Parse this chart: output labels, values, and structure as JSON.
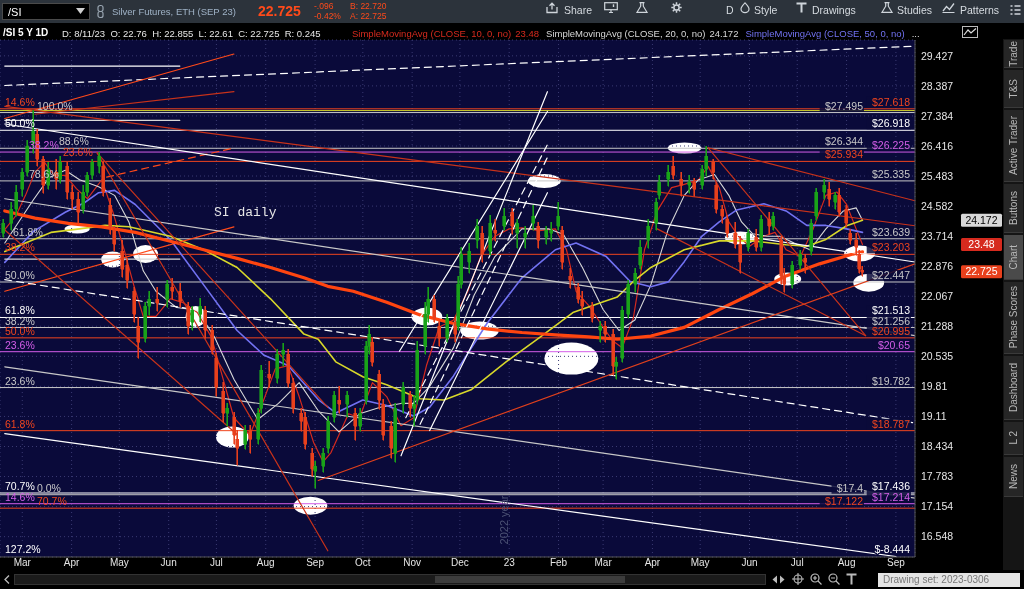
{
  "chart_data": {
    "type": "candlestick",
    "title": "/SI 5 Y 1D",
    "subtitle": "D: 8/11/23  O: 22.76  H: 22.855  L: 22.61  C: 22.725  R: 0.245",
    "x": [
      "2022-02-17",
      "2022-02-22",
      "2022-02-25",
      "2022-03-01",
      "2022-03-04",
      "2022-03-08",
      "2022-03-10",
      "2022-03-14",
      "2022-03-17",
      "2022-03-22",
      "2022-03-25",
      "2022-03-29",
      "2022-04-01",
      "2022-04-05",
      "2022-04-08",
      "2022-04-11",
      "2022-04-14",
      "2022-04-18",
      "2022-04-21",
      "2022-04-25",
      "2022-04-28",
      "2022-05-03",
      "2022-05-06",
      "2022-05-10",
      "2022-05-13",
      "2022-05-17",
      "2022-05-20",
      "2022-05-25",
      "2022-05-31",
      "2022-06-03",
      "2022-06-08",
      "2022-06-13",
      "2022-06-16",
      "2022-06-21",
      "2022-06-24",
      "2022-06-28",
      "2022-07-01",
      "2022-07-05",
      "2022-07-08",
      "2022-07-12",
      "2022-07-14",
      "2022-07-19",
      "2022-07-22",
      "2022-07-27",
      "2022-07-29",
      "2022-08-03",
      "2022-08-08",
      "2022-08-12",
      "2022-08-15",
      "2022-08-18",
      "2022-08-23",
      "2022-08-26",
      "2022-08-30",
      "2022-09-01",
      "2022-09-06",
      "2022-09-09",
      "2022-09-13",
      "2022-09-16",
      "2022-09-21",
      "2022-09-26",
      "2022-09-29",
      "2022-10-03",
      "2022-10-05",
      "2022-10-07",
      "2022-10-11",
      "2022-10-14",
      "2022-10-19",
      "2022-10-21",
      "2022-10-26",
      "2022-10-31",
      "2022-11-02",
      "2022-11-04",
      "2022-11-09",
      "2022-11-11",
      "2022-11-15",
      "2022-11-18",
      "2022-11-23",
      "2022-11-28",
      "2022-11-30",
      "2022-12-02",
      "2022-12-07",
      "2022-12-12",
      "2022-12-15",
      "2022-12-20",
      "2022-12-23",
      "2022-12-29",
      "2023-01-03",
      "2023-01-06",
      "2023-01-11",
      "2023-01-16",
      "2023-01-19",
      "2023-01-24",
      "2023-01-27",
      "2023-02-01",
      "2023-02-03",
      "2023-02-08",
      "2023-02-13",
      "2023-02-16",
      "2023-02-22",
      "2023-02-27",
      "2023-03-02",
      "2023-03-07",
      "2023-03-09",
      "2023-03-13",
      "2023-03-17",
      "2023-03-21",
      "2023-03-24",
      "2023-03-29",
      "2023-04-03",
      "2023-04-05",
      "2023-04-11",
      "2023-04-14",
      "2023-04-19",
      "2023-04-24",
      "2023-04-27",
      "2023-05-02",
      "2023-05-05",
      "2023-05-09",
      "2023-05-11",
      "2023-05-15",
      "2023-05-18",
      "2023-05-23",
      "2023-05-26",
      "2023-05-31",
      "2023-06-05",
      "2023-06-08",
      "2023-06-13",
      "2023-06-16",
      "2023-06-21",
      "2023-06-23",
      "2023-06-28",
      "2023-07-03",
      "2023-07-06",
      "2023-07-10",
      "2023-07-13",
      "2023-07-18",
      "2023-07-21",
      "2023-07-25",
      "2023-07-27",
      "2023-08-01",
      "2023-08-03",
      "2023-08-07",
      "2023-08-09",
      "2023-08-11"
    ],
    "ohlc": [
      [
        23.8,
        24.2,
        23.7,
        24.1
      ],
      [
        24.1,
        24.7,
        23.9,
        24.5
      ],
      [
        24.5,
        25.2,
        24.3,
        25.0
      ],
      [
        25.1,
        25.7,
        24.9,
        25.6
      ],
      [
        25.6,
        26.6,
        25.5,
        26.4
      ],
      [
        26.5,
        27.55,
        26.2,
        26.9
      ],
      [
        26.8,
        26.95,
        25.8,
        26.0
      ],
      [
        26.0,
        26.1,
        25.0,
        25.2
      ],
      [
        25.2,
        25.9,
        25.1,
        25.7
      ],
      [
        25.6,
        26.0,
        25.1,
        25.4
      ],
      [
        25.4,
        26.1,
        25.3,
        25.9
      ],
      [
        25.8,
        25.9,
        24.8,
        25.0
      ],
      [
        25.0,
        25.2,
        24.5,
        24.8
      ],
      [
        24.8,
        25.0,
        24.1,
        24.4
      ],
      [
        24.5,
        25.2,
        24.4,
        25.0
      ],
      [
        25.0,
        25.6,
        24.9,
        25.5
      ],
      [
        25.5,
        26.0,
        25.4,
        25.9
      ],
      [
        25.8,
        26.2,
        25.6,
        26.1
      ],
      [
        25.8,
        25.9,
        24.9,
        25.0
      ],
      [
        24.6,
        24.8,
        23.8,
        24.0
      ],
      [
        23.9,
        24.0,
        23.3,
        23.5
      ],
      [
        23.3,
        23.6,
        22.6,
        22.8
      ],
      [
        22.9,
        23.1,
        22.3,
        22.5
      ],
      [
        22.2,
        22.3,
        21.4,
        21.6
      ],
      [
        21.3,
        21.5,
        20.5,
        20.9
      ],
      [
        21.0,
        21.9,
        20.9,
        21.8
      ],
      [
        21.8,
        22.2,
        21.6,
        22.0
      ],
      [
        22.0,
        22.3,
        21.7,
        21.9
      ],
      [
        22.0,
        22.5,
        21.8,
        22.4
      ],
      [
        22.3,
        22.55,
        22.0,
        22.2
      ],
      [
        22.2,
        22.4,
        21.8,
        21.95
      ],
      [
        21.8,
        21.9,
        21.1,
        21.3
      ],
      [
        21.4,
        21.8,
        21.2,
        21.7
      ],
      [
        21.6,
        22.0,
        21.4,
        21.8
      ],
      [
        21.7,
        21.8,
        21.0,
        21.2
      ],
      [
        21.2,
        21.3,
        20.6,
        20.7
      ],
      [
        20.5,
        20.6,
        19.6,
        19.8
      ],
      [
        19.7,
        19.9,
        19.0,
        19.2
      ],
      [
        19.2,
        19.4,
        18.9,
        19.3
      ],
      [
        19.1,
        19.2,
        18.5,
        18.7
      ],
      [
        18.6,
        18.8,
        18.05,
        18.4
      ],
      [
        18.5,
        18.9,
        18.4,
        18.8
      ],
      [
        18.8,
        18.9,
        18.3,
        18.6
      ],
      [
        18.6,
        19.3,
        18.5,
        19.2
      ],
      [
        19.3,
        20.3,
        19.2,
        20.2
      ],
      [
        20.1,
        20.4,
        19.8,
        20.0
      ],
      [
        20.0,
        20.7,
        19.9,
        20.6
      ],
      [
        20.6,
        20.85,
        20.3,
        20.7
      ],
      [
        20.6,
        20.7,
        19.8,
        19.9
      ],
      [
        19.9,
        20.0,
        19.2,
        19.3
      ],
      [
        19.2,
        19.3,
        18.8,
        19.0
      ],
      [
        19.1,
        19.2,
        18.4,
        18.5
      ],
      [
        18.3,
        18.4,
        17.8,
        17.95
      ],
      [
        17.9,
        18.1,
        17.56,
        18.0
      ],
      [
        18.0,
        18.4,
        17.9,
        18.3
      ],
      [
        18.4,
        19.1,
        18.3,
        19.0
      ],
      [
        19.1,
        19.7,
        19.0,
        19.6
      ],
      [
        19.5,
        19.8,
        19.2,
        19.4
      ],
      [
        19.4,
        19.7,
        19.1,
        19.6
      ],
      [
        19.2,
        19.3,
        18.6,
        18.9
      ],
      [
        18.9,
        19.3,
        18.8,
        19.2
      ],
      [
        19.5,
        20.9,
        19.4,
        20.8
      ],
      [
        20.8,
        21.3,
        20.6,
        21.1
      ],
      [
        20.9,
        21.0,
        20.3,
        20.4
      ],
      [
        20.1,
        20.2,
        19.3,
        19.5
      ],
      [
        19.4,
        19.5,
        18.6,
        18.7
      ],
      [
        18.9,
        19.0,
        18.2,
        18.4
      ],
      [
        18.3,
        19.4,
        18.1,
        19.3
      ],
      [
        19.4,
        19.9,
        19.2,
        19.8
      ],
      [
        19.6,
        19.7,
        19.1,
        19.3
      ],
      [
        19.3,
        19.6,
        18.9,
        19.4
      ],
      [
        19.5,
        20.9,
        19.4,
        20.7
      ],
      [
        20.8,
        21.9,
        20.6,
        21.6
      ],
      [
        21.6,
        22.3,
        21.4,
        22.0
      ],
      [
        22.0,
        22.1,
        21.4,
        21.5
      ],
      [
        21.3,
        21.4,
        20.8,
        21.0
      ],
      [
        21.0,
        21.6,
        20.9,
        21.5
      ],
      [
        21.4,
        21.5,
        20.9,
        21.1
      ],
      [
        21.3,
        22.6,
        21.2,
        22.4
      ],
      [
        22.4,
        23.4,
        22.3,
        23.2
      ],
      [
        23.0,
        23.5,
        22.7,
        23.3
      ],
      [
        23.6,
        24.2,
        23.4,
        24.0
      ],
      [
        23.8,
        24.0,
        23.0,
        23.2
      ],
      [
        23.3,
        24.3,
        23.2,
        24.1
      ],
      [
        23.9,
        24.2,
        23.6,
        23.8
      ],
      [
        24.0,
        24.5,
        23.9,
        24.3
      ],
      [
        24.4,
        24.5,
        23.8,
        24.0
      ],
      [
        23.8,
        24.2,
        23.4,
        24.1
      ],
      [
        23.7,
        24.0,
        23.4,
        23.8
      ],
      [
        24.1,
        24.6,
        23.9,
        24.3
      ],
      [
        24.0,
        24.1,
        23.4,
        23.6
      ],
      [
        23.7,
        24.0,
        23.5,
        23.9
      ],
      [
        23.8,
        24.1,
        23.6,
        23.9
      ],
      [
        24.0,
        24.7,
        23.9,
        24.3
      ],
      [
        23.9,
        24.0,
        22.8,
        23.0
      ],
      [
        22.6,
        22.8,
        22.3,
        22.5
      ],
      [
        22.3,
        22.4,
        21.9,
        22.0
      ],
      [
        22.0,
        22.2,
        21.6,
        21.8
      ],
      [
        21.8,
        21.9,
        21.4,
        21.5
      ],
      [
        21.2,
        21.4,
        20.9,
        21.3
      ],
      [
        21.3,
        21.4,
        20.9,
        21.1
      ],
      [
        21.1,
        21.2,
        20.1,
        20.3
      ],
      [
        20.3,
        20.5,
        20.0,
        20.4
      ],
      [
        20.5,
        21.8,
        20.4,
        21.7
      ],
      [
        21.6,
        22.5,
        21.5,
        22.4
      ],
      [
        22.4,
        22.8,
        22.2,
        22.7
      ],
      [
        22.9,
        23.6,
        22.8,
        23.4
      ],
      [
        23.6,
        24.2,
        23.4,
        24.0
      ],
      [
        24.1,
        24.8,
        23.9,
        24.7
      ],
      [
        24.9,
        25.5,
        24.8,
        25.3
      ],
      [
        25.4,
        25.8,
        25.2,
        25.6
      ],
      [
        25.8,
        26.1,
        25.4,
        25.5
      ],
      [
        25.4,
        25.6,
        24.9,
        25.2
      ],
      [
        25.2,
        25.5,
        25.0,
        25.3
      ],
      [
        25.3,
        25.4,
        24.9,
        25.1
      ],
      [
        25.2,
        25.8,
        25.1,
        25.7
      ],
      [
        25.7,
        26.4,
        25.5,
        26.1
      ],
      [
        25.9,
        26.0,
        25.4,
        25.6
      ],
      [
        25.2,
        25.3,
        24.4,
        24.5
      ],
      [
        24.5,
        24.6,
        24.1,
        24.3
      ],
      [
        24.2,
        24.3,
        23.7,
        23.8
      ],
      [
        23.8,
        24.1,
        23.4,
        23.5
      ],
      [
        23.5,
        23.7,
        22.7,
        23.0
      ],
      [
        23.4,
        23.9,
        23.3,
        23.8
      ],
      [
        23.7,
        23.9,
        23.3,
        23.4
      ],
      [
        23.4,
        24.3,
        23.3,
        24.2
      ],
      [
        24.2,
        24.4,
        23.8,
        24.0
      ],
      [
        24.0,
        24.4,
        23.9,
        24.3
      ],
      [
        23.6,
        23.7,
        22.4,
        22.6
      ],
      [
        22.6,
        22.8,
        22.2,
        22.4
      ],
      [
        22.4,
        23.0,
        22.3,
        22.9
      ],
      [
        22.9,
        23.3,
        22.8,
        23.2
      ],
      [
        23.1,
        23.2,
        22.7,
        23.0
      ],
      [
        23.3,
        24.2,
        23.2,
        24.1
      ],
      [
        24.3,
        25.1,
        24.2,
        25.0
      ],
      [
        25.0,
        25.37,
        24.8,
        25.2
      ],
      [
        25.1,
        25.3,
        24.6,
        24.8
      ],
      [
        24.7,
        25.0,
        24.5,
        24.9
      ],
      [
        24.9,
        25.1,
        24.3,
        24.4
      ],
      [
        24.5,
        24.6,
        24.0,
        24.1
      ],
      [
        23.8,
        23.9,
        23.5,
        23.6
      ],
      [
        23.6,
        23.8,
        23.2,
        23.4
      ],
      [
        23.2,
        23.3,
        22.7,
        22.8
      ],
      [
        22.76,
        22.855,
        22.61,
        22.725
      ]
    ],
    "colors": [
      "#19a319",
      "#19a319",
      "#19a319",
      "#19a319",
      "#19a319",
      "#19a319",
      "#e8401c",
      "#e8401c",
      "#19a319",
      "#e8401c",
      "#19a319",
      "#e8401c",
      "#e8401c",
      "#e8401c",
      "#19a319",
      "#19a319",
      "#19a319",
      "#19a319",
      "#e8401c",
      "#e8401c",
      "#e8401c",
      "#e8401c",
      "#e8401c",
      "#e8401c",
      "#e8401c",
      "#19a319",
      "#19a319",
      "#e8401c",
      "#19a319",
      "#e8401c",
      "#e8401c",
      "#e8401c",
      "#19a319",
      "#19a319",
      "#e8401c",
      "#e8401c",
      "#e8401c",
      "#e8401c",
      "#19a319",
      "#e8401c",
      "#e8401c",
      "#19a319",
      "#e8401c",
      "#19a319",
      "#19a319",
      "#e8401c",
      "#19a319",
      "#19a319",
      "#e8401c",
      "#e8401c",
      "#e8401c",
      "#e8401c",
      "#e8401c",
      "#19a319",
      "#19a319",
      "#19a319",
      "#19a319",
      "#e8401c",
      "#19a319",
      "#e8401c",
      "#19a319",
      "#19a319",
      "#19a319",
      "#e8401c",
      "#e8401c",
      "#e8401c",
      "#e8401c",
      "#19a319",
      "#19a319",
      "#e8401c",
      "#19a319",
      "#19a319",
      "#19a319",
      "#19a319",
      "#e8401c",
      "#e8401c",
      "#19a319",
      "#e8401c",
      "#19a319",
      "#19a319",
      "#19a319",
      "#19a319",
      "#e8401c",
      "#19a319",
      "#e8401c",
      "#19a319",
      "#e8401c",
      "#19a319",
      "#19a319",
      "#19a319",
      "#e8401c",
      "#19a319",
      "#19a319",
      "#19a319",
      "#e8401c",
      "#e8401c",
      "#e8401c",
      "#e8401c",
      "#e8401c",
      "#19a319",
      "#e8401c",
      "#e8401c",
      "#19a319",
      "#19a319",
      "#19a319",
      "#19a319",
      "#19a319",
      "#19a319",
      "#19a319",
      "#19a319",
      "#19a319",
      "#e8401c",
      "#e8401c",
      "#19a319",
      "#e8401c",
      "#19a319",
      "#19a319",
      "#e8401c",
      "#e8401c",
      "#e8401c",
      "#e8401c",
      "#e8401c",
      "#e8401c",
      "#19a319",
      "#e8401c",
      "#19a319",
      "#e8401c",
      "#19a319",
      "#e8401c",
      "#e8401c",
      "#19a319",
      "#19a319",
      "#e8401c",
      "#19a319",
      "#19a319",
      "#19a319",
      "#e8401c",
      "#19a319",
      "#e8401c",
      "#e8401c",
      "#e8401c",
      "#e8401c",
      "#e8401c",
      "#e8401c"
    ],
    "series": [
      {
        "name": "SimpleMovingAvg (CLOSE, 10, 0, no)",
        "type": "line",
        "color": "#d62a1e",
        "x": [
          "2022-02-18",
          "2022-02-25",
          "2022-03-03",
          "2022-03-09",
          "2022-03-15",
          "2022-03-21",
          "2022-03-28",
          "2022-04-04",
          "2022-04-11",
          "2022-04-20",
          "2022-04-27",
          "2022-05-04",
          "2022-05-10",
          "2022-05-16",
          "2022-05-24",
          "2022-06-02",
          "2022-06-10",
          "2022-06-19",
          "2022-06-28",
          "2022-07-04",
          "2022-07-12",
          "2022-07-22",
          "2022-07-29",
          "2022-08-07",
          "2022-08-15",
          "2022-08-22",
          "2022-08-31",
          "2022-09-06",
          "2022-09-11",
          "2022-09-22",
          "2022-09-29",
          "2022-10-07",
          "2022-10-16",
          "2022-10-25",
          "2022-11-02",
          "2022-11-10",
          "2022-11-18",
          "2022-11-27",
          "2022-12-06",
          "2022-12-14",
          "2022-12-23",
          "2023-01-01",
          "2023-01-09",
          "2023-01-20",
          "2023-01-30",
          "2023-02-06",
          "2023-02-12",
          "2023-02-20",
          "2023-03-01",
          "2023-03-07",
          "2023-03-13",
          "2023-03-20",
          "2023-03-27",
          "2023-04-04",
          "2023-04-13",
          "2023-04-21",
          "2023-04-30",
          "2023-05-06",
          "2023-05-13",
          "2023-05-19",
          "2023-05-25",
          "2023-06-01",
          "2023-06-10",
          "2023-06-17",
          "2023-06-24",
          "2023-07-03",
          "2023-07-11",
          "2023-07-19",
          "2023-07-26",
          "2023-08-01",
          "2023-08-07",
          "2023-08-11"
        ],
        "values": [
          23.9,
          24.3,
          24.9,
          25.6,
          25.9,
          25.5,
          25.5,
          25.1,
          24.8,
          25.37,
          24.4,
          23.33,
          22.37,
          21.54,
          21.54,
          22.0,
          21.9,
          21.64,
          21.0,
          20.15,
          19.08,
          18.69,
          19.32,
          20.23,
          20.31,
          19.57,
          18.53,
          18.1,
          18.3,
          19.17,
          19.08,
          19.9,
          19.57,
          18.9,
          19.08,
          20.31,
          21.27,
          21.45,
          22.2,
          23.14,
          23.71,
          23.92,
          23.95,
          23.87,
          23.92,
          23.33,
          22.2,
          21.82,
          21.27,
          20.92,
          20.75,
          21.5,
          23.33,
          24.44,
          25.13,
          25.23,
          25.37,
          25.78,
          25.13,
          24.12,
          23.71,
          23.43,
          23.71,
          23.82,
          23.33,
          23.14,
          23.92,
          24.9,
          25.0,
          24.63,
          23.92,
          23.48
        ]
      },
      {
        "name": "SimpleMovingAvg (CLOSE, 20, 0, no)",
        "type": "line",
        "color": "#d8d8d8",
        "x": [
          "2022-02-18",
          "2022-03-08",
          "2022-03-18",
          "2022-03-28",
          "2022-04-06",
          "2022-04-18",
          "2022-04-28",
          "2022-05-07",
          "2022-05-16",
          "2022-05-24",
          "2022-06-06",
          "2022-06-19",
          "2022-06-30",
          "2022-07-12",
          "2022-07-27",
          "2022-08-09",
          "2022-08-22",
          "2022-09-03",
          "2022-09-16",
          "2022-09-29",
          "2022-10-12",
          "2022-10-25",
          "2022-11-02",
          "2022-11-12",
          "2022-11-27",
          "2022-12-10",
          "2022-12-23",
          "2023-01-09",
          "2023-01-26",
          "2023-02-04",
          "2023-02-16",
          "2023-03-01",
          "2023-03-11",
          "2023-03-21",
          "2023-03-31",
          "2023-04-11",
          "2023-04-21",
          "2023-04-30",
          "2023-05-10",
          "2023-05-19",
          "2023-05-27",
          "2023-06-03",
          "2023-06-12",
          "2023-06-20",
          "2023-06-29",
          "2023-07-09",
          "2023-07-19",
          "2023-07-30",
          "2023-08-07",
          "2023-08-11"
        ],
        "values": [
          23.52,
          24.77,
          25.44,
          25.66,
          25.37,
          25.16,
          24.9,
          24.12,
          22.75,
          22.2,
          21.77,
          21.7,
          21.0,
          19.98,
          19.04,
          19.41,
          19.9,
          19.24,
          18.76,
          19.17,
          19.32,
          19.41,
          19.41,
          19.81,
          20.75,
          22.1,
          23.14,
          23.92,
          23.92,
          23.77,
          22.84,
          21.72,
          21.18,
          21.45,
          22.37,
          23.92,
          24.9,
          25.37,
          25.53,
          24.9,
          24.12,
          23.78,
          23.71,
          23.71,
          23.52,
          23.33,
          23.92,
          24.44,
          24.53,
          24.172
        ]
      },
      {
        "name": "SimpleMovingAvg (CLOSE, 50, 0, no)",
        "type": "line",
        "color": "#7272f2",
        "x": [
          "2022-02-18",
          "2022-03-08",
          "2022-03-28",
          "2022-04-09",
          "2022-04-18",
          "2022-04-28",
          "2022-05-11",
          "2022-06-02",
          "2022-06-23",
          "2022-07-14",
          "2022-07-31",
          "2022-08-15",
          "2022-09-03",
          "2022-09-14",
          "2022-10-01",
          "2022-10-16",
          "2022-11-02",
          "2022-11-12",
          "2022-11-27",
          "2022-12-18",
          "2023-01-09",
          "2023-01-30",
          "2023-02-12",
          "2023-03-03",
          "2023-03-18",
          "2023-03-31",
          "2023-04-11",
          "2023-04-21",
          "2023-05-02",
          "2023-05-13",
          "2023-05-24",
          "2023-06-10",
          "2023-06-24",
          "2023-07-07",
          "2023-07-19",
          "2023-08-01",
          "2023-08-11"
        ],
        "values": [
          22.98,
          23.85,
          24.4,
          24.68,
          24.98,
          25.05,
          24.63,
          23.62,
          22.37,
          21.18,
          20.56,
          20.31,
          19.5,
          19.19,
          19.49,
          19.36,
          19.12,
          19.32,
          20.06,
          21.36,
          22.56,
          23.33,
          23.52,
          23.14,
          22.46,
          22.32,
          22.45,
          23.0,
          23.71,
          24.12,
          24.47,
          24.65,
          24.44,
          24.02,
          24.02,
          23.92,
          23.82
        ]
      },
      {
        "type": "line",
        "color": "#d8d82a",
        "x": [
          "2022-02-18",
          "2022-03-19",
          "2022-04-06",
          "2022-04-22",
          "2022-05-07",
          "2022-06-02",
          "2022-06-23",
          "2022-07-14",
          "2022-08-04",
          "2022-08-25",
          "2022-09-03",
          "2022-09-14",
          "2022-10-01",
          "2022-10-16",
          "2022-11-06",
          "2022-11-21",
          "2022-12-08",
          "2022-12-30",
          "2023-01-20",
          "2023-02-10",
          "2023-03-03",
          "2023-03-10",
          "2023-03-21",
          "2023-03-31",
          "2023-04-21",
          "2023-05-13",
          "2023-06-03",
          "2023-06-24",
          "2023-07-07",
          "2023-07-19",
          "2023-08-01",
          "2023-08-11"
        ],
        "values": [
          23.28,
          23.82,
          23.92,
          24.02,
          23.98,
          23.71,
          23.33,
          22.84,
          22.0,
          21.09,
          20.96,
          20.4,
          20.04,
          19.85,
          19.52,
          19.49,
          19.73,
          20.4,
          21.0,
          21.64,
          21.95,
          22.05,
          22.5,
          22.84,
          23.33,
          23.58,
          23.58,
          23.47,
          23.43,
          23.62,
          24.01,
          24.17
        ]
      },
      {
        "type": "line",
        "color": "#ff4510",
        "x": [
          "2022-02-18",
          "2022-03-09",
          "2022-03-30",
          "2022-04-20",
          "2022-05-11",
          "2022-06-02",
          "2022-06-23",
          "2022-07-14",
          "2022-08-04",
          "2022-08-25",
          "2022-09-09",
          "2022-09-25",
          "2022-10-16",
          "2022-11-06",
          "2022-11-27",
          "2022-12-18",
          "2023-01-09",
          "2023-01-30",
          "2023-02-20",
          "2023-03-10",
          "2023-03-31",
          "2023-04-21",
          "2023-05-13",
          "2023-06-03",
          "2023-06-24",
          "2023-07-15",
          "2023-08-05",
          "2023-08-11"
        ],
        "values": [
          24.44,
          24.23,
          24.08,
          23.98,
          23.82,
          23.57,
          23.33,
          23.09,
          22.84,
          22.56,
          22.33,
          22.2,
          21.91,
          21.58,
          21.36,
          21.22,
          21.13,
          21.07,
          21.02,
          20.96,
          21.04,
          21.26,
          21.72,
          22.14,
          22.61,
          22.94,
          23.21,
          23.27
        ]
      },
      {
        "type": "line",
        "color": "#ffffff",
        "line_style": "dashed",
        "x": [
          "2022-02-18",
          "2023-09-13"
        ],
        "values": [
          28.4,
          29.77
        ]
      },
      {
        "type": "line",
        "color": "#ffffff",
        "x": [
          "2022-02-18",
          "2022-06-08"
        ],
        "values": [
          29.07,
          29.07
        ]
      },
      {
        "type": "line",
        "color": "#d8d8d8",
        "x": [
          "2022-02-18",
          "2022-06-08"
        ],
        "values": [
          27.24,
          27.24
        ]
      },
      {
        "type": "line",
        "color": "#d8d8d8",
        "x": [
          "2022-02-18",
          "2022-06-08"
        ],
        "values": [
          23.07,
          23.07
        ]
      },
      {
        "type": "line",
        "color": "#ff4a1a",
        "x": [
          "2022-02-18",
          "2022-07-12"
        ],
        "values": [
          27.3,
          29.49
        ]
      },
      {
        "type": "line",
        "color": "#c8321a",
        "x": [
          "2022-03-09",
          "2022-07-12"
        ],
        "values": [
          27.44,
          28.19
        ]
      },
      {
        "type": "line",
        "color": "#ff4a1a",
        "line_style": "dashed",
        "x": [
          "2022-04-23",
          "2022-07-10"
        ],
        "values": [
          25.45,
          26.33
        ]
      },
      {
        "type": "line",
        "color": "#ff4a1a",
        "x": [
          "2022-02-18",
          "2022-07-12"
        ],
        "values": [
          22.2,
          23.98
        ]
      },
      {
        "type": "line",
        "color": "#ffffff",
        "x": [
          "2022-02-18",
          "2023-09-13"
        ],
        "values": [
          27.12,
          22.99
        ]
      },
      {
        "type": "line",
        "color": "#ffffff",
        "line_style": "dashed",
        "x": [
          "2022-02-18",
          "2023-09-13"
        ],
        "values": [
          22.51,
          18.96
        ]
      },
      {
        "type": "line",
        "color": "#c8c8c8",
        "x": [
          "2022-02-18",
          "2023-09-13"
        ],
        "values": [
          24.8,
          21.05
        ]
      },
      {
        "type": "line",
        "color": "#ffffff",
        "x": [
          "2022-02-18",
          "2023-09-01"
        ],
        "values": [
          18.72,
          16.16
        ]
      },
      {
        "type": "line",
        "color": "#c8c8c8",
        "x": [
          "2022-02-18",
          "2023-09-13"
        ],
        "values": [
          20.28,
          17.33
        ]
      },
      {
        "type": "line",
        "color": "#c8321a",
        "x": [
          "2022-02-18",
          "2023-09-13"
        ],
        "values": [
          27.7,
          24.01
        ]
      },
      {
        "type": "line",
        "color": "#c8321a",
        "x": [
          "2022-04-17",
          "2022-09-09"
        ],
        "values": [
          26.2,
          16.27
        ]
      },
      {
        "type": "line",
        "color": "#c8321a",
        "x": [
          "2022-04-17",
          "2022-09-09"
        ],
        "values": [
          26.2,
          19.32
        ]
      },
      {
        "type": "line",
        "color": "#c8321a",
        "x": [
          "2022-02-18",
          "2022-07-14"
        ],
        "values": [
          23.89,
          18.7
        ]
      },
      {
        "type": "line",
        "color": "#c8321a",
        "x": [
          "2023-05-06",
          "2023-09-13"
        ],
        "values": [
          26.36,
          24.74
        ]
      },
      {
        "type": "line",
        "color": "#c8321a",
        "x": [
          "2023-05-06",
          "2023-08-13"
        ],
        "values": [
          26.36,
          21.05
        ]
      },
      {
        "type": "line",
        "color": "#c8321a",
        "x": [
          "2023-04-04",
          "2023-08-13"
        ],
        "values": [
          23.92,
          21.05
        ]
      },
      {
        "type": "line",
        "color": "#e0401c",
        "x": [
          "2022-09-03",
          "2023-09-13"
        ],
        "values": [
          17.7,
          22.94
        ]
      },
      {
        "type": "line",
        "color": "#ffffff",
        "x": [
          "2022-10-25",
          "2023-01-25"
        ],
        "values": [
          18.23,
          28.19
        ]
      },
      {
        "type": "line",
        "color": "#ffffff",
        "x": [
          "2022-10-24",
          "2023-01-25"
        ],
        "values": [
          20.66,
          27.53
        ]
      },
      {
        "type": "line",
        "color": "#ffffff",
        "line_style": "dashed",
        "x": [
          "2022-10-28",
          "2023-01-25"
        ],
        "values": [
          19.08,
          26.46
        ]
      },
      {
        "type": "line",
        "color": "#ffffff",
        "line_style": "dashed",
        "x": [
          "2022-11-06",
          "2023-01-25"
        ],
        "values": [
          18.93,
          26.06
        ]
      },
      {
        "type": "line",
        "color": "#ffffff",
        "x": [
          "2022-11-12",
          "2023-01-25"
        ],
        "values": [
          18.79,
          24.98
        ]
      }
    ],
    "ref_lines": [
      {
        "axis": "y",
        "value": 27.618,
        "label": "$27.618",
        "color": "#f0451e"
      },
      {
        "axis": "y",
        "value": 26.918,
        "label": "$26.918",
        "color": "#ffffff"
      },
      {
        "axis": "y",
        "value": 26.225,
        "label": "$26.225",
        "color": "#d45ee8"
      },
      {
        "axis": "y",
        "value": 25.934,
        "label": "$25.934",
        "color": "#f0451e"
      },
      {
        "axis": "y",
        "value": 23.203,
        "label": "$23.203",
        "color": "#f0451e"
      },
      {
        "axis": "y",
        "value": 21.513,
        "label": "$21.513",
        "color": "#ffffff"
      },
      {
        "axis": "y",
        "value": 20.995,
        "label": "$20.995",
        "color": "#f0451e"
      },
      {
        "axis": "y",
        "value": 20.65,
        "label": "$20.65",
        "color": "#d45ee8"
      },
      {
        "axis": "y",
        "value": 18.787,
        "label": "$18.787",
        "color": "#f0451e"
      },
      {
        "axis": "y",
        "value": 17.436,
        "label": "$17.436",
        "color": "#ffffff"
      },
      {
        "axis": "y",
        "value": 17.214,
        "label": "$17.214",
        "color": "#d45ee8"
      },
      {
        "axis": "y",
        "value": 17.122,
        "label": "$17.122",
        "color": "#f0451e"
      },
      {
        "axis": "y",
        "value": 27.495,
        "label": "$27.495",
        "color": "#c8c8c8"
      },
      {
        "axis": "y",
        "value": 26.344,
        "label": "$26.344",
        "color": "#c8c8c8"
      },
      {
        "axis": "y",
        "value": 25.335,
        "label": "$25.335",
        "color": "#c8c8c8"
      },
      {
        "axis": "y",
        "value": 23.639,
        "label": "$23.639",
        "color": "#c8c8c8"
      },
      {
        "axis": "y",
        "value": 22.447,
        "label": "$22.447",
        "color": "#c8c8c8"
      },
      {
        "axis": "y",
        "value": 21.256,
        "label": "$21.256",
        "color": "#c8c8c8"
      },
      {
        "axis": "y",
        "value": 19.782,
        "label": "$19.782",
        "color": "#c8c8c8"
      },
      {
        "axis": "y",
        "value": 17.4,
        "label": "$17.4",
        "color": "#c8c8c8"
      },
      {
        "axis": "y",
        "value": 27.56,
        "color": "#d6d62a"
      }
    ],
    "annotations": [
      "/SI",
      "Silver Futures, ETH (SEP 23)",
      "22.725",
      "-.096",
      "-0.42%",
      "B: 22.720",
      "A: 22.725",
      "Share",
      "D",
      "Style",
      "Drawings",
      "Studies",
      "Patterns",
      "23.48",
      "24.172",
      "...",
      "SI daily",
      "2022 year",
      "127.2%",
      "$-8.444",
      "Trade",
      "T&S",
      "Active Trader",
      "Buttons",
      "Chart",
      "Phase Scores",
      "Dashboard",
      "L 2",
      "News",
      "Drawing set: 2023-0306",
      "24.172",
      "23.48",
      "22.725",
      {
        "text": "14.6%",
        "y": 27.618
      },
      {
        "text": "50.0%",
        "y": 26.918
      },
      {
        "text": "38.2%",
        "y": 26.225
      },
      {
        "text": "23.6%",
        "y": 25.934
      },
      {
        "text": "38.2%",
        "y": 23.203
      },
      {
        "text": "61.8%",
        "y": 21.513
      },
      {
        "text": "50.0%",
        "y": 20.995
      },
      {
        "text": "23.6%",
        "y": 20.65
      },
      {
        "text": "61.8%",
        "y": 18.787
      },
      {
        "text": "70.7%",
        "y": 17.436
      },
      {
        "text": "14.6%",
        "y": 17.214
      },
      {
        "text": "70.7%",
        "y": 17.122
      },
      {
        "text": "100.0%",
        "y": 27.495
      },
      {
        "text": "88.6%",
        "y": 26.344
      },
      {
        "text": "78.6%",
        "y": 25.335
      },
      {
        "text": "61.8%",
        "y": 23.639
      },
      {
        "text": "50.0%",
        "y": 22.447
      },
      {
        "text": "38.2%",
        "y": 21.256
      },
      {
        "text": "23.6%",
        "y": 19.782
      },
      {
        "text": "0.0%",
        "y": 17.4
      }
    ],
    "xlim": [
      "2022-02-15",
      "2023-09-13"
    ],
    "xticks": [
      {
        "value": "2022-03-01",
        "label": "Mar"
      },
      {
        "value": "2022-04-01",
        "label": "Apr"
      },
      {
        "value": "2022-05-01",
        "label": "May"
      },
      {
        "value": "2022-06-01",
        "label": "Jun"
      },
      {
        "value": "2022-07-01",
        "label": "Jul"
      },
      {
        "value": "2022-08-01",
        "label": "Aug"
      },
      {
        "value": "2022-09-01",
        "label": "Sep"
      },
      {
        "value": "2022-10-01",
        "label": "Oct"
      },
      {
        "value": "2022-11-01",
        "label": "Nov"
      },
      {
        "value": "2022-12-01",
        "label": "Dec"
      },
      {
        "value": "2023-01-01",
        "label": "23"
      },
      {
        "value": "2023-02-01",
        "label": "Feb"
      },
      {
        "value": "2023-03-01",
        "label": "Mar"
      },
      {
        "value": "2023-04-01",
        "label": "Apr"
      },
      {
        "value": "2023-05-01",
        "label": "May"
      },
      {
        "value": "2023-06-01",
        "label": "Jun"
      },
      {
        "value": "2023-07-01",
        "label": "Jul"
      },
      {
        "value": "2023-08-01",
        "label": "Aug"
      },
      {
        "value": "2023-09-01",
        "label": "Sep"
      }
    ],
    "ylim": [
      16.15,
      29.99
    ],
    "yticks": [
      16.548,
      17.154,
      17.783,
      18.434,
      19.11,
      19.81,
      20.535,
      21.288,
      22.067,
      22.876,
      23.714,
      24.582,
      25.483,
      26.416,
      27.384,
      28.387,
      29.427
    ],
    "log": true,
    "grid": true,
    "legend": "top right"
  }
}
